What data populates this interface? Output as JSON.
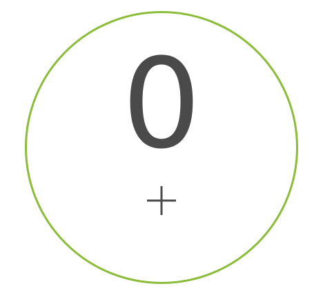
{
  "counter": {
    "value": "0",
    "increment_icon": "plus-icon",
    "colors": {
      "ring": "#8bbd3a",
      "text": "#4a4a4a",
      "background": "#ffffff"
    }
  }
}
